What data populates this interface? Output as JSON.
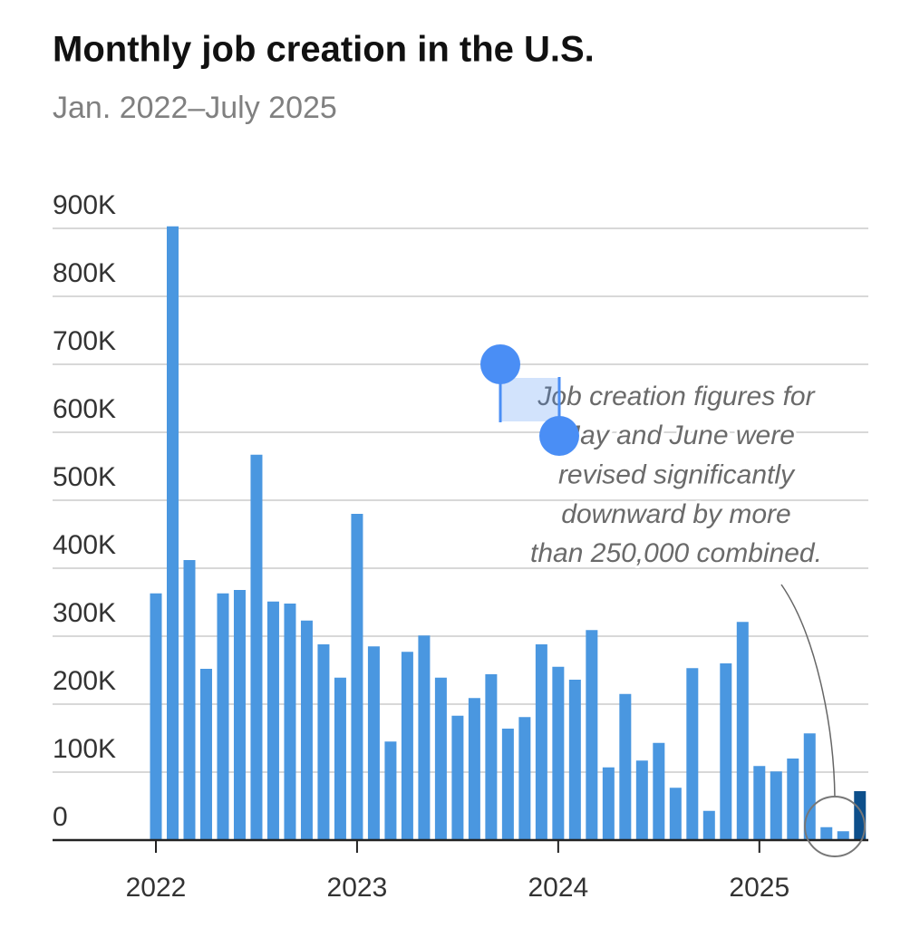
{
  "chart_data": {
    "type": "bar",
    "title": "Monthly job creation in the U.S.",
    "subtitle": "Jan. 2022–July 2025",
    "categories": [
      "2022",
      null,
      null,
      null,
      null,
      null,
      null,
      null,
      null,
      null,
      null,
      null,
      "2023",
      null,
      null,
      null,
      null,
      null,
      null,
      null,
      null,
      null,
      null,
      null,
      "2024",
      null,
      null,
      null,
      null,
      null,
      null,
      null,
      null,
      null,
      null,
      null,
      "2025",
      null,
      null,
      null,
      null,
      null,
      null
    ],
    "values": [
      363000,
      903000,
      412000,
      252000,
      363000,
      368000,
      567000,
      351000,
      348000,
      323000,
      288000,
      239000,
      480000,
      285000,
      145000,
      277000,
      301000,
      239000,
      183000,
      209000,
      244000,
      164000,
      181000,
      288000,
      255000,
      236000,
      309000,
      107000,
      215000,
      117000,
      143000,
      77000,
      253000,
      43000,
      260000,
      321000,
      109000,
      101000,
      120000,
      157000,
      19000,
      13000,
      72000
    ],
    "color": "#4a97e0",
    "highlight_color": "#0d4f8b",
    "highlight": [
      42
    ],
    "ylim": [
      0,
      900000
    ],
    "yticks": [
      0,
      {
        "value": 100000,
        "label": "100K"
      },
      {
        "value": 200000,
        "label": "200K"
      },
      {
        "value": 300000,
        "label": "300K"
      },
      {
        "value": 400000,
        "label": "400K"
      },
      {
        "value": 500000,
        "label": "500K"
      },
      {
        "value": 600000,
        "label": "600K"
      },
      {
        "value": 700000,
        "label": "700K"
      },
      {
        "value": 800000,
        "label": "800K"
      },
      {
        "value": 900000,
        "label": "900K"
      }
    ],
    "grid": true,
    "annotation": [
      "Job creation figures for",
      "May and June were",
      "revised significantly",
      "downward by more",
      "than 250,000 combined."
    ]
  }
}
